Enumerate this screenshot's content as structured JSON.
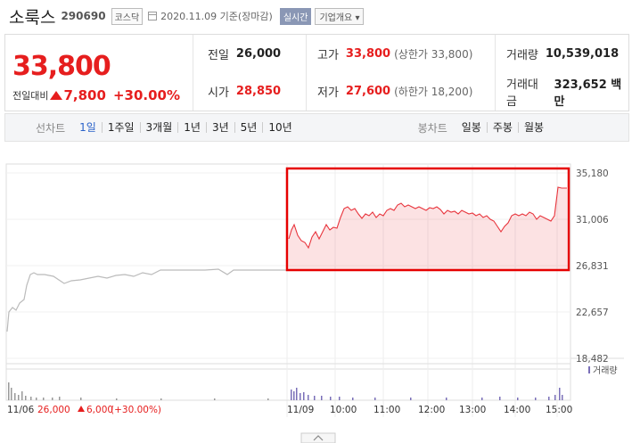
{
  "header": {
    "name": "소룩스",
    "code": "290690",
    "market": "코스닥",
    "date": "2020.11.09",
    "date_suffix": "기준(장마감)",
    "live": "실시간",
    "company_info": "기업개요",
    "company_info_arrow": "▾"
  },
  "summary": {
    "price": "33,800",
    "change_label": "전일대비",
    "change": "7,800",
    "change_pct": "+30.00%",
    "prev_close_label": "전일",
    "prev_close": "26,000",
    "high_label": "고가",
    "high": "33,800",
    "upper_limit": "(상한가 33,800)",
    "volume_label": "거래량",
    "volume": "10,539,018",
    "open_label": "시가",
    "open": "28,850",
    "low_label": "저가",
    "low": "27,600",
    "lower_limit": "(하한가 18,200)",
    "amount_label": "거래대금",
    "amount": "323,652 백만"
  },
  "tabs": {
    "line_title": "선차트",
    "line_items": [
      "1일",
      "1주일",
      "3개월",
      "1년",
      "3년",
      "5년",
      "10년"
    ],
    "active_index": 0,
    "candle_title": "봉차트",
    "candle_items": [
      "일봉",
      "주봉",
      "월봉"
    ]
  },
  "chart_data": {
    "type": "line",
    "y_ticks": [
      "35,180",
      "31,006",
      "26,831",
      "22,657",
      "18,482"
    ],
    "x_ticks": [
      "11/06",
      "11/09",
      "10:00",
      "11:00",
      "12:00",
      "13:00",
      "14:00",
      "15:00"
    ],
    "ylim": [
      18482,
      35180
    ],
    "volume_label": "거래량",
    "footer_date": "11/06",
    "footer_value": "26,000",
    "footer_change": "6,000",
    "footer_pct": "(+30.00%)",
    "highlight_color": "#e60000",
    "prev_day_color": "#bbbbbb",
    "today_color": "#e8343c"
  }
}
